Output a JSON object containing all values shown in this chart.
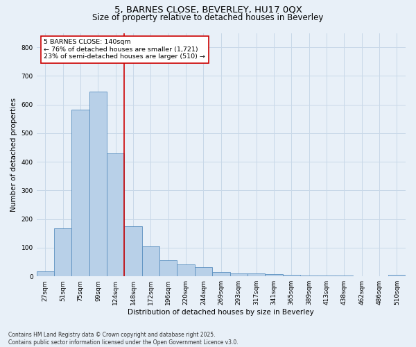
{
  "title_line1": "5, BARNES CLOSE, BEVERLEY, HU17 0QX",
  "title_line2": "Size of property relative to detached houses in Beverley",
  "xlabel": "Distribution of detached houses by size in Beverley",
  "ylabel": "Number of detached properties",
  "categories": [
    "27sqm",
    "51sqm",
    "75sqm",
    "99sqm",
    "124sqm",
    "148sqm",
    "172sqm",
    "196sqm",
    "220sqm",
    "244sqm",
    "269sqm",
    "293sqm",
    "317sqm",
    "341sqm",
    "365sqm",
    "389sqm",
    "413sqm",
    "438sqm",
    "462sqm",
    "486sqm",
    "510sqm"
  ],
  "values": [
    18,
    168,
    583,
    645,
    430,
    175,
    105,
    57,
    42,
    32,
    15,
    11,
    9,
    8,
    6,
    4,
    3,
    2,
    1,
    0,
    5
  ],
  "bar_color": "#b8d0e8",
  "bar_edge_color": "#5a8fc0",
  "marker_index": 4,
  "marker_color": "#cc0000",
  "annotation_text": "5 BARNES CLOSE: 140sqm\n← 76% of detached houses are smaller (1,721)\n23% of semi-detached houses are larger (510) →",
  "annotation_box_color": "#ffffff",
  "annotation_box_edge": "#cc0000",
  "ylim": [
    0,
    850
  ],
  "yticks": [
    0,
    100,
    200,
    300,
    400,
    500,
    600,
    700,
    800
  ],
  "grid_color": "#c8d8e8",
  "background_color": "#e8f0f8",
  "plot_bg_color": "#e8f0f8",
  "footnote": "Contains HM Land Registry data © Crown copyright and database right 2025.\nContains public sector information licensed under the Open Government Licence v3.0.",
  "title_fontsize": 9.5,
  "subtitle_fontsize": 8.5,
  "tick_fontsize": 6.5,
  "label_fontsize": 7.5,
  "annotation_fontsize": 6.8,
  "footnote_fontsize": 5.5
}
